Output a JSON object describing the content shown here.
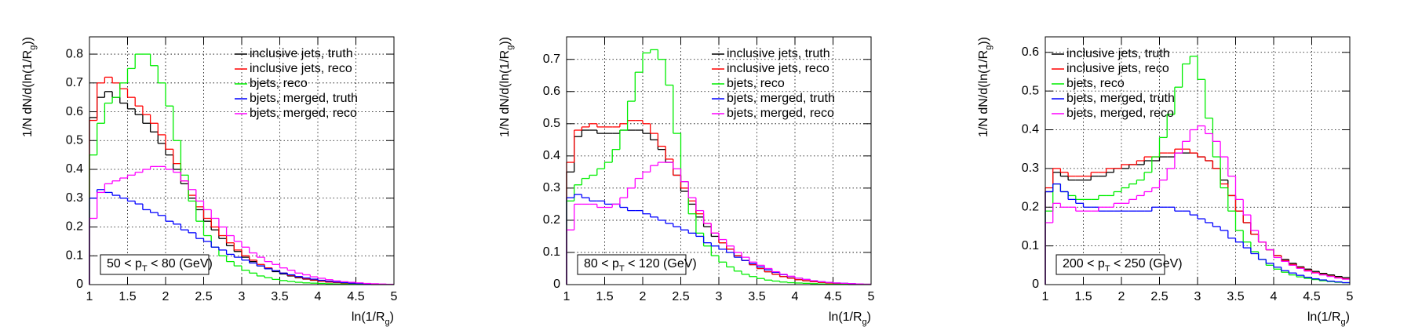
{
  "chart_data": [
    {
      "type": "histogram",
      "ylabel": [
        "1/N dN/d(ln(1/R",
        "g",
        "))"
      ],
      "xlabel": [
        "ln(1/R",
        "g",
        ")"
      ],
      "annotation": [
        "50 < p",
        "T",
        " < 80 (GeV)"
      ],
      "xlim": [
        1,
        5
      ],
      "ylim": [
        0,
        0.86
      ],
      "xticks": [
        1,
        1.5,
        2,
        2.5,
        3,
        3.5,
        4,
        4.5,
        5
      ],
      "yticks": [
        0,
        0.1,
        0.2,
        0.3,
        0.4,
        0.5,
        0.6,
        0.7,
        0.8
      ],
      "grid": true,
      "legend": "top-right",
      "bins": [
        1,
        1.1,
        1.2,
        1.3,
        1.4,
        1.5,
        1.6,
        1.7,
        1.8,
        1.9,
        2,
        2.1,
        2.2,
        2.3,
        2.4,
        2.5,
        2.6,
        2.7,
        2.8,
        2.9,
        3,
        3.1,
        3.2,
        3.3,
        3.4,
        3.5,
        3.6,
        3.7,
        3.8,
        3.9,
        4,
        4.1,
        4.2,
        4.3,
        4.4,
        4.5,
        4.6,
        4.7,
        4.8,
        4.9,
        5
      ],
      "series": [
        {
          "name": "inclusive jets, truth",
          "color": "#000000",
          "values": [
            0.58,
            0.65,
            0.67,
            0.65,
            0.63,
            0.61,
            0.59,
            0.56,
            0.53,
            0.49,
            0.45,
            0.4,
            0.35,
            0.3,
            0.26,
            0.22,
            0.19,
            0.16,
            0.135,
            0.115,
            0.095,
            0.08,
            0.065,
            0.055,
            0.045,
            0.037,
            0.03,
            0.024,
            0.019,
            0.015,
            0.012,
            0.009,
            0.007,
            0.005,
            0.004,
            0.003,
            0.002,
            0.002,
            0.001,
            0.001
          ]
        },
        {
          "name": "inclusive jets, reco",
          "color": "#ff0000",
          "values": [
            0.57,
            0.7,
            0.72,
            0.7,
            0.68,
            0.65,
            0.62,
            0.59,
            0.56,
            0.52,
            0.47,
            0.42,
            0.36,
            0.31,
            0.27,
            0.23,
            0.2,
            0.17,
            0.145,
            0.12,
            0.1,
            0.085,
            0.07,
            0.058,
            0.048,
            0.04,
            0.032,
            0.026,
            0.02,
            0.016,
            0.012,
            0.009,
            0.007,
            0.005,
            0.004,
            0.003,
            0.002,
            0.002,
            0.001,
            0.001
          ]
        },
        {
          "name": "bjets, reco",
          "color": "#00ee00",
          "values": [
            0.45,
            0.56,
            0.63,
            0.65,
            0.7,
            0.75,
            0.8,
            0.8,
            0.76,
            0.7,
            0.62,
            0.5,
            0.38,
            0.29,
            0.22,
            0.17,
            0.13,
            0.1,
            0.08,
            0.065,
            0.05,
            0.04,
            0.03,
            0.024,
            0.018,
            0.014,
            0.011,
            0.008,
            0.006,
            0.005,
            0.004,
            0.003,
            0.002,
            0.002,
            0.001,
            0.001,
            0.001,
            0,
            0,
            0
          ]
        },
        {
          "name": "bjets, merged, truth",
          "color": "#0000ff",
          "values": [
            0.3,
            0.33,
            0.32,
            0.31,
            0.3,
            0.29,
            0.28,
            0.26,
            0.25,
            0.24,
            0.22,
            0.21,
            0.19,
            0.18,
            0.16,
            0.15,
            0.13,
            0.12,
            0.105,
            0.095,
            0.085,
            0.075,
            0.065,
            0.055,
            0.048,
            0.04,
            0.034,
            0.028,
            0.023,
            0.019,
            0.015,
            0.012,
            0.009,
            0.007,
            0.005,
            0.004,
            0.003,
            0.002,
            0.001,
            0.001
          ]
        },
        {
          "name": "bjets, merged, reco",
          "color": "#ff00ff",
          "values": [
            0.23,
            0.32,
            0.35,
            0.36,
            0.37,
            0.38,
            0.39,
            0.4,
            0.41,
            0.41,
            0.4,
            0.39,
            0.36,
            0.33,
            0.29,
            0.26,
            0.23,
            0.2,
            0.17,
            0.15,
            0.13,
            0.11,
            0.095,
            0.08,
            0.07,
            0.058,
            0.05,
            0.04,
            0.034,
            0.027,
            0.022,
            0.017,
            0.013,
            0.01,
            0.008,
            0.006,
            0.004,
            0.003,
            0.002,
            0.001
          ]
        }
      ]
    },
    {
      "type": "histogram",
      "ylabel": [
        "1/N dN/d(ln(1/R",
        "g",
        "))"
      ],
      "xlabel": [
        "ln(1/R",
        "g",
        ")"
      ],
      "annotation": [
        "80 < p",
        "T",
        " < 120 (GeV)"
      ],
      "xlim": [
        1,
        5
      ],
      "ylim": [
        0,
        0.77
      ],
      "xticks": [
        1,
        1.5,
        2,
        2.5,
        3,
        3.5,
        4,
        4.5,
        5
      ],
      "yticks": [
        0,
        0.1,
        0.2,
        0.3,
        0.4,
        0.5,
        0.6,
        0.7
      ],
      "grid": true,
      "legend": "top-right",
      "bins": [
        1,
        1.1,
        1.2,
        1.3,
        1.4,
        1.5,
        1.6,
        1.7,
        1.8,
        1.9,
        2,
        2.1,
        2.2,
        2.3,
        2.4,
        2.5,
        2.6,
        2.7,
        2.8,
        2.9,
        3,
        3.1,
        3.2,
        3.3,
        3.4,
        3.5,
        3.6,
        3.7,
        3.8,
        3.9,
        4,
        4.1,
        4.2,
        4.3,
        4.4,
        4.5,
        4.6,
        4.7,
        4.8,
        4.9,
        5
      ],
      "series": [
        {
          "name": "inclusive jets, truth",
          "color": "#000000",
          "values": [
            0.35,
            0.46,
            0.48,
            0.48,
            0.47,
            0.47,
            0.47,
            0.48,
            0.48,
            0.48,
            0.47,
            0.45,
            0.42,
            0.38,
            0.34,
            0.29,
            0.25,
            0.21,
            0.18,
            0.15,
            0.13,
            0.11,
            0.09,
            0.075,
            0.062,
            0.05,
            0.04,
            0.032,
            0.025,
            0.02,
            0.015,
            0.012,
            0.009,
            0.007,
            0.005,
            0.004,
            0.003,
            0.002,
            0.001,
            0.001
          ]
        },
        {
          "name": "inclusive jets, reco",
          "color": "#ff0000",
          "values": [
            0.38,
            0.48,
            0.49,
            0.5,
            0.49,
            0.49,
            0.49,
            0.5,
            0.51,
            0.51,
            0.5,
            0.47,
            0.43,
            0.39,
            0.34,
            0.3,
            0.26,
            0.22,
            0.19,
            0.16,
            0.13,
            0.11,
            0.09,
            0.075,
            0.062,
            0.05,
            0.04,
            0.032,
            0.025,
            0.02,
            0.015,
            0.012,
            0.009,
            0.007,
            0.005,
            0.004,
            0.003,
            0.002,
            0.001,
            0.001
          ]
        },
        {
          "name": "bjets, reco",
          "color": "#00ee00",
          "values": [
            0.26,
            0.31,
            0.33,
            0.34,
            0.36,
            0.38,
            0.42,
            0.48,
            0.57,
            0.66,
            0.72,
            0.73,
            0.7,
            0.62,
            0.47,
            0.32,
            0.22,
            0.16,
            0.12,
            0.09,
            0.07,
            0.055,
            0.042,
            0.032,
            0.025,
            0.019,
            0.014,
            0.011,
            0.008,
            0.006,
            0.005,
            0.004,
            0.003,
            0.002,
            0.001,
            0.001,
            0.001,
            0,
            0,
            0
          ]
        },
        {
          "name": "bjets, merged, truth",
          "color": "#0000ff",
          "values": [
            0.27,
            0.28,
            0.27,
            0.26,
            0.26,
            0.25,
            0.25,
            0.24,
            0.23,
            0.23,
            0.22,
            0.21,
            0.2,
            0.19,
            0.18,
            0.17,
            0.16,
            0.15,
            0.13,
            0.12,
            0.11,
            0.1,
            0.085,
            0.075,
            0.065,
            0.055,
            0.046,
            0.038,
            0.031,
            0.025,
            0.02,
            0.016,
            0.012,
            0.009,
            0.007,
            0.005,
            0.004,
            0.003,
            0.002,
            0.001
          ]
        },
        {
          "name": "bjets, merged, reco",
          "color": "#ff00ff",
          "values": [
            0.17,
            0.25,
            0.25,
            0.25,
            0.24,
            0.24,
            0.25,
            0.27,
            0.3,
            0.33,
            0.35,
            0.37,
            0.38,
            0.38,
            0.36,
            0.32,
            0.27,
            0.23,
            0.19,
            0.16,
            0.14,
            0.12,
            0.1,
            0.085,
            0.07,
            0.06,
            0.05,
            0.04,
            0.032,
            0.026,
            0.02,
            0.016,
            0.012,
            0.009,
            0.007,
            0.005,
            0.004,
            0.003,
            0.002,
            0.001
          ]
        }
      ]
    },
    {
      "type": "histogram",
      "ylabel": [
        "1/N dN/d(ln(1/R",
        "g",
        "))"
      ],
      "xlabel": [
        "ln(1/R",
        "g",
        ")"
      ],
      "annotation": [
        "200 < p",
        "T",
        " < 250 (GeV)"
      ],
      "xlim": [
        1,
        5
      ],
      "ylim": [
        0,
        0.64
      ],
      "xticks": [
        1,
        1.5,
        2,
        2.5,
        3,
        3.5,
        4,
        4.5,
        5
      ],
      "yticks": [
        0,
        0.1,
        0.2,
        0.3,
        0.4,
        0.5,
        0.6
      ],
      "grid": true,
      "legend": "top-left",
      "bins": [
        1,
        1.1,
        1.2,
        1.3,
        1.4,
        1.5,
        1.6,
        1.7,
        1.8,
        1.9,
        2,
        2.1,
        2.2,
        2.3,
        2.4,
        2.5,
        2.6,
        2.7,
        2.8,
        2.9,
        3,
        3.1,
        3.2,
        3.3,
        3.4,
        3.5,
        3.6,
        3.7,
        3.8,
        3.9,
        4,
        4.1,
        4.2,
        4.3,
        4.4,
        4.5,
        4.6,
        4.7,
        4.8,
        4.9,
        5
      ],
      "series": [
        {
          "name": "inclusive jets, truth",
          "color": "#000000",
          "values": [
            0.24,
            0.29,
            0.28,
            0.27,
            0.27,
            0.27,
            0.28,
            0.28,
            0.29,
            0.3,
            0.3,
            0.31,
            0.31,
            0.32,
            0.32,
            0.33,
            0.33,
            0.34,
            0.34,
            0.34,
            0.33,
            0.32,
            0.3,
            0.27,
            0.23,
            0.19,
            0.16,
            0.13,
            0.11,
            0.09,
            0.075,
            0.065,
            0.055,
            0.046,
            0.04,
            0.034,
            0.029,
            0.025,
            0.021,
            0.018
          ]
        },
        {
          "name": "inclusive jets, reco",
          "color": "#ff0000",
          "values": [
            0.25,
            0.3,
            0.29,
            0.28,
            0.28,
            0.28,
            0.29,
            0.29,
            0.3,
            0.3,
            0.31,
            0.31,
            0.32,
            0.33,
            0.33,
            0.34,
            0.34,
            0.35,
            0.35,
            0.34,
            0.33,
            0.32,
            0.3,
            0.26,
            0.23,
            0.19,
            0.16,
            0.13,
            0.11,
            0.09,
            0.075,
            0.062,
            0.052,
            0.044,
            0.037,
            0.031,
            0.026,
            0.022,
            0.018,
            0.015
          ]
        },
        {
          "name": "bjets, reco",
          "color": "#00ee00",
          "values": [
            0.19,
            0.26,
            0.24,
            0.23,
            0.22,
            0.22,
            0.22,
            0.23,
            0.23,
            0.24,
            0.25,
            0.26,
            0.27,
            0.29,
            0.33,
            0.38,
            0.44,
            0.51,
            0.57,
            0.59,
            0.53,
            0.43,
            0.33,
            0.25,
            0.19,
            0.14,
            0.11,
            0.085,
            0.065,
            0.05,
            0.04,
            0.032,
            0.025,
            0.02,
            0.016,
            0.013,
            0.01,
            0.008,
            0.006,
            0.005
          ]
        },
        {
          "name": "bjets, merged, truth",
          "color": "#0000ff",
          "values": [
            0.24,
            0.26,
            0.24,
            0.22,
            0.21,
            0.2,
            0.2,
            0.19,
            0.19,
            0.19,
            0.19,
            0.19,
            0.19,
            0.19,
            0.2,
            0.2,
            0.2,
            0.19,
            0.19,
            0.18,
            0.17,
            0.16,
            0.15,
            0.14,
            0.12,
            0.11,
            0.095,
            0.08,
            0.065,
            0.055,
            0.045,
            0.036,
            0.03,
            0.024,
            0.019,
            0.015,
            0.012,
            0.009,
            0.007,
            0.005
          ]
        },
        {
          "name": "bjets, merged, reco",
          "color": "#ff00ff",
          "values": [
            0.16,
            0.21,
            0.2,
            0.2,
            0.19,
            0.19,
            0.19,
            0.2,
            0.2,
            0.21,
            0.21,
            0.22,
            0.23,
            0.24,
            0.25,
            0.27,
            0.3,
            0.34,
            0.37,
            0.4,
            0.41,
            0.39,
            0.37,
            0.33,
            0.28,
            0.22,
            0.18,
            0.14,
            0.11,
            0.09,
            0.07,
            0.06,
            0.05,
            0.042,
            0.035,
            0.03,
            0.025,
            0.021,
            0.017,
            0.014
          ]
        }
      ]
    }
  ]
}
